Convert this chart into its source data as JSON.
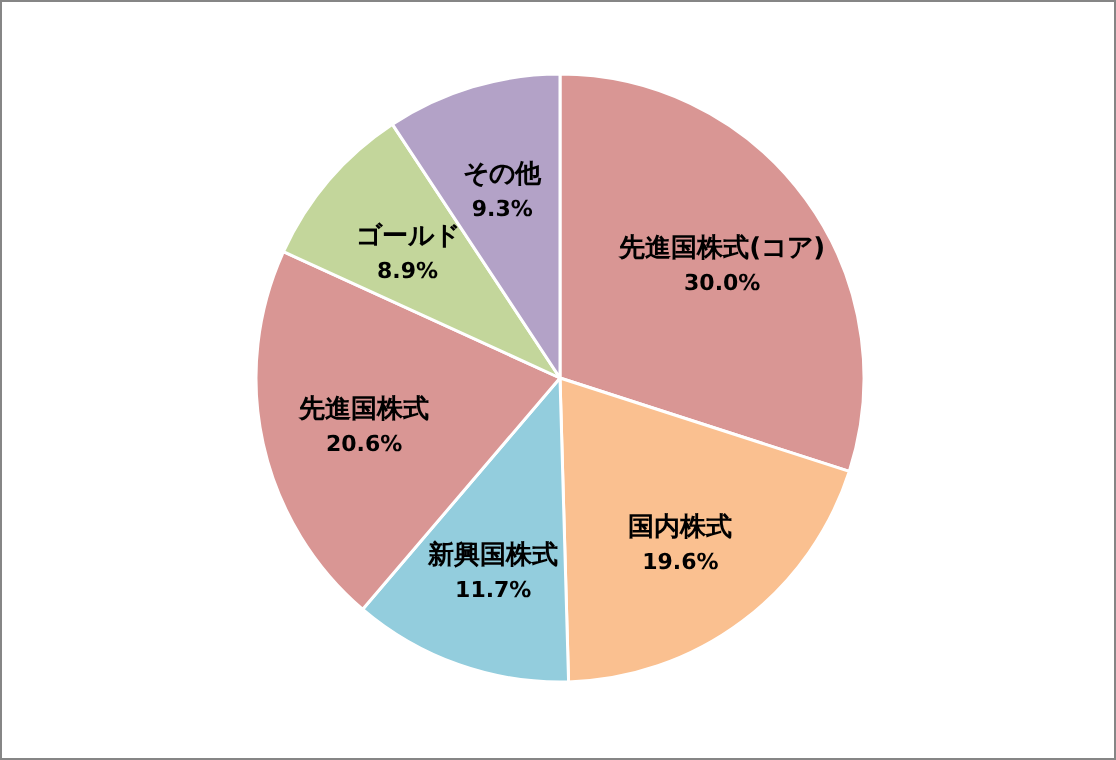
{
  "chart_data": {
    "type": "pie",
    "categories": [
      "先進国株式(コア)",
      "国内株式",
      "新興国株式",
      "先進国株式",
      "ゴールド",
      "その他"
    ],
    "values": [
      30.0,
      19.6,
      11.7,
      20.6,
      8.9,
      9.3
    ],
    "value_labels": [
      "30.0%",
      "19.6%",
      "11.7%",
      "20.6%",
      "8.9%",
      "9.3%"
    ],
    "colors": [
      "#d99694",
      "#fac090",
      "#93cddd",
      "#d99694",
      "#c3d69b",
      "#b3a2c7"
    ]
  }
}
